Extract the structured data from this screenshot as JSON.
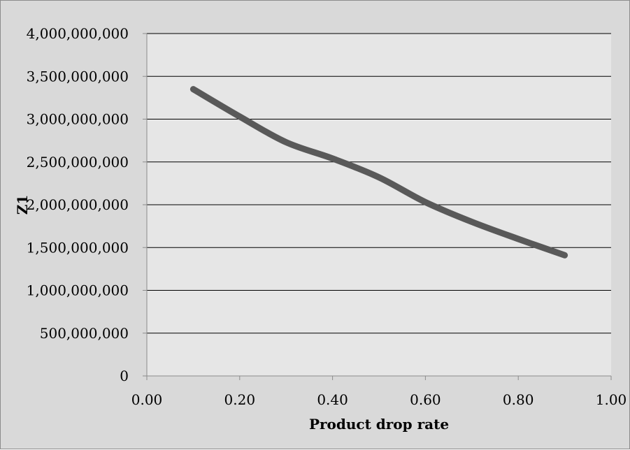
{
  "chart_data": {
    "type": "line",
    "title": "",
    "xlabel": "Product drop rate",
    "ylabel": "Z1",
    "xlim": [
      0,
      1
    ],
    "ylim": [
      0,
      4000000000
    ],
    "x_ticks": [
      0,
      0.2,
      0.4,
      0.6,
      0.8,
      1.0
    ],
    "x_tick_labels": [
      "0.00",
      "0.20",
      "0.40",
      "0.60",
      "0.80",
      "1.00"
    ],
    "y_ticks": [
      0,
      500000000,
      1000000000,
      1500000000,
      2000000000,
      2500000000,
      3000000000,
      3500000000,
      4000000000
    ],
    "y_tick_labels": [
      "0",
      "500,000,000",
      "1,000,000,000",
      "1,500,000,000",
      "2,000,000,000",
      "2,500,000,000",
      "3,000,000,000",
      "3,500,000,000",
      "4,000,000,000"
    ],
    "grid": true,
    "legend": "none",
    "series": [
      {
        "color": "#595959",
        "smooth": true,
        "x": [
          0.1,
          0.2,
          0.3,
          0.4,
          0.5,
          0.6,
          0.7,
          0.8,
          0.9
        ],
        "y": [
          3350000000,
          3030000000,
          2730000000,
          2540000000,
          2320000000,
          2030000000,
          1800000000,
          1600000000,
          1410000000
        ]
      }
    ],
    "colors": {
      "chart_background": "#d9d9d9",
      "plot_background": "#e6e6e6",
      "gridline": "#000000",
      "series_line": "#595959"
    }
  }
}
